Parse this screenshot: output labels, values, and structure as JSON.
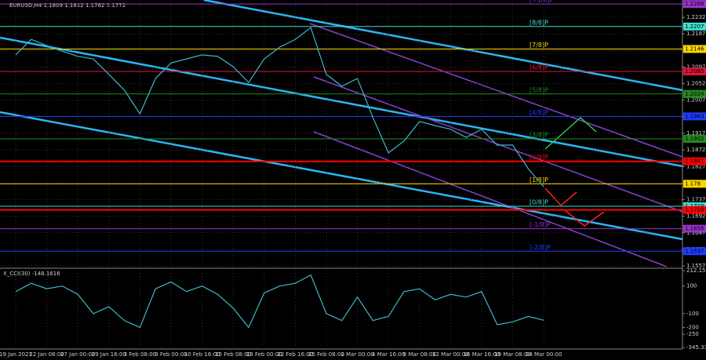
{
  "chart_data": [
    {
      "type": "line",
      "title": "EURUSD,H4  1.1809 1.1812 1.1762 1.1772",
      "color": "#3cb8c8",
      "categories": [
        "19 Jan 2021",
        null,
        "22 Jan 08:00",
        null,
        "27 Jan 00:00",
        null,
        "29 Jan 16:00",
        null,
        "3 Feb 08:00",
        null,
        "8 Feb 00:00",
        null,
        "10 Feb 16:00",
        null,
        "15 Feb 08:00",
        null,
        "18 Feb 00:00",
        null,
        "22 Feb 16:00",
        null,
        "25 Feb 08:00",
        null,
        "2 Mar 00:00",
        null,
        "4 Mar 16:00",
        null,
        "9 Mar 08:00",
        null,
        "12 Mar 00:00",
        null,
        "16 Mar 16:00",
        null,
        "19 Mar 08:00",
        null,
        "24 Mar 00:00",
        null,
        null,
        null,
        null,
        null,
        null,
        null,
        null,
        null
      ],
      "values": [
        1.213,
        1.2172,
        1.2155,
        1.214,
        1.2126,
        1.2119,
        1.2077,
        1.2034,
        1.197,
        1.2066,
        1.2108,
        1.2119,
        1.213,
        1.2126,
        1.2098,
        1.2055,
        1.2119,
        1.2151,
        1.2172,
        1.2204,
        1.2077,
        1.2045,
        1.2066,
        1.196,
        1.1864,
        1.1896,
        1.1949,
        1.1938,
        1.1928,
        1.1906,
        1.1928,
        1.1885,
        1.1885,
        1.1821,
        1.1772,
        null,
        null,
        null,
        null,
        null,
        null,
        null,
        null,
        null
      ],
      "ylim": [
        1.1555,
        1.2279
      ],
      "yticks": [
        1.2232,
        1.2187,
        1.2142,
        1.2097,
        1.2052,
        1.2007,
        1.1962,
        1.1917,
        1.1872,
        1.1827,
        1.1782,
        1.1737,
        1.1692,
        1.1647,
        1.1602,
        1.1557
      ],
      "grid": true,
      "levels": [
        {
          "name": "[+1/8]P",
          "value": 1.2268,
          "color": "#9932cc"
        },
        {
          "name": "[8/8]P",
          "value": 1.2207,
          "color": "#40e0d0"
        },
        {
          "name": "[7/8]P",
          "value": 1.2146,
          "color": "#ffd700"
        },
        {
          "name": "[6/8]P",
          "value": 1.2085,
          "color": "#dc143c"
        },
        {
          "name": "[5/8]P",
          "value": 1.2024,
          "color": "#228b22"
        },
        {
          "name": "[4/8]P",
          "value": 1.1963,
          "color": "#1e3cff"
        },
        {
          "name": "[3/8]P",
          "value": 1.1902,
          "color": "#228b22"
        },
        {
          "name": "[2/8]P",
          "value": 1.1841,
          "color": "#ff0000"
        },
        {
          "name": "[1/8]P",
          "value": 1.178,
          "color": "#ffd700"
        },
        {
          "name": "[0/8]P",
          "value": 1.1719,
          "color": "#40e0d0"
        },
        {
          "value": 1.1709,
          "color": "#ff0000"
        },
        {
          "name": "[-1/8]P",
          "value": 1.1658,
          "color": "#9932cc"
        },
        {
          "name": "[-2/8]P",
          "value": 1.1597,
          "color": "#1e3cff"
        }
      ]
    },
    {
      "type": "line",
      "title": "X_CCI(30) -148.1616",
      "color": "#3cb8c8",
      "values": [
        60,
        120,
        80,
        100,
        40,
        -100,
        -50,
        -150,
        -200,
        80,
        130,
        60,
        100,
        40,
        -60,
        -200,
        50,
        100,
        120,
        180,
        -100,
        -150,
        20,
        -150,
        -120,
        60,
        80,
        0,
        40,
        20,
        60,
        -180,
        -160,
        -120,
        -148
      ],
      "ylim": [
        -345.334,
        212.1595
      ],
      "yticks": [
        212.1595,
        100,
        -100,
        -200,
        -250,
        -345.334
      ]
    }
  ]
}
